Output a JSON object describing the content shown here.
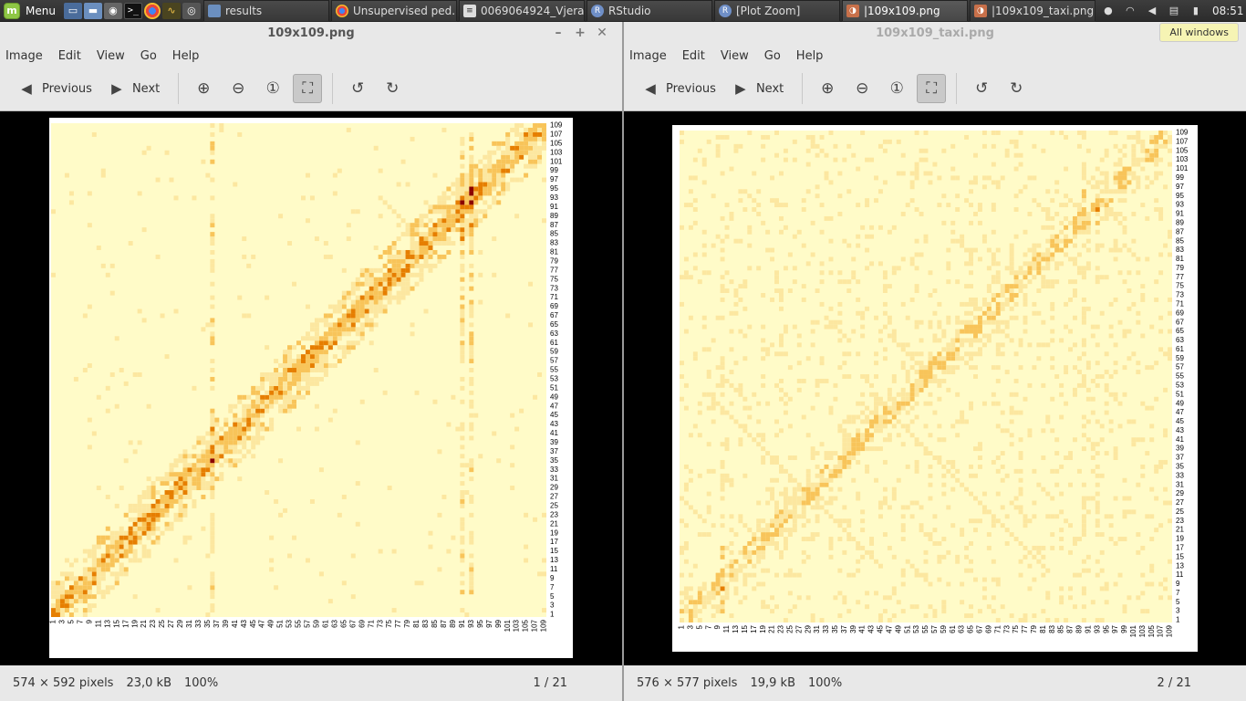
{
  "taskbar": {
    "menu_label": "Menu",
    "tasks": [
      {
        "label": "results",
        "icon": "folder-icon"
      },
      {
        "label": "Unsupervised ped...",
        "icon": "chrome-icon"
      },
      {
        "label": "0069064924_Vjera...",
        "icon": "document-icon"
      },
      {
        "label": "RStudio",
        "icon": "r-icon"
      },
      {
        "label": "[Plot Zoom]",
        "icon": "r-icon"
      },
      {
        "label": "|109x109.png",
        "icon": "image-viewer-icon"
      },
      {
        "label": "|109x109_taxi.png",
        "icon": "image-viewer-icon"
      }
    ],
    "clock": "08:51"
  },
  "menu": {
    "image": "Image",
    "edit": "Edit",
    "view": "View",
    "go": "Go",
    "help": "Help"
  },
  "toolbar": {
    "previous": "Previous",
    "next": "Next"
  },
  "left_window": {
    "title": "109x109.png",
    "status": {
      "dimensions": "574 × 592 pixels",
      "size": "23,0 kB",
      "zoom": "100%",
      "page": "1 / 21"
    }
  },
  "right_window": {
    "title": "109x109_taxi.png",
    "all_windows": "All windows",
    "status": {
      "dimensions": "576 × 577 pixels",
      "size": "19,9 kB",
      "zoom": "100%",
      "page": "2 / 21"
    }
  },
  "heatmap": {
    "x_tick_labels": [
      "1",
      "3",
      "5",
      "7",
      "9",
      "11",
      "13",
      "15",
      "17",
      "19",
      "21",
      "23",
      "25",
      "27",
      "29",
      "31",
      "33",
      "35",
      "37",
      "39",
      "41",
      "43",
      "45",
      "47",
      "49",
      "51",
      "53",
      "55",
      "57",
      "59",
      "61",
      "63",
      "65",
      "67",
      "69",
      "71",
      "73",
      "75",
      "77",
      "79",
      "81",
      "83",
      "85",
      "87",
      "89",
      "91",
      "93",
      "95",
      "97",
      "99",
      "101",
      "103",
      "105",
      "107",
      "109"
    ],
    "y_tick_labels": [
      "1",
      "3",
      "5",
      "7",
      "9",
      "11",
      "13",
      "15",
      "17",
      "19",
      "21",
      "23",
      "25",
      "27",
      "29",
      "31",
      "33",
      "35",
      "37",
      "39",
      "41",
      "43",
      "45",
      "47",
      "49",
      "51",
      "53",
      "55",
      "57",
      "59",
      "61",
      "63",
      "65",
      "67",
      "69",
      "71",
      "73",
      "75",
      "77",
      "79",
      "81",
      "83",
      "85",
      "87",
      "89",
      "91",
      "93",
      "95",
      "97",
      "99",
      "101",
      "103",
      "105",
      "107",
      "109"
    ],
    "colors": {
      "low": "#fffbc8",
      "mid": "#f8c45a",
      "high": "#e67e00",
      "max": "#8b0000"
    }
  }
}
